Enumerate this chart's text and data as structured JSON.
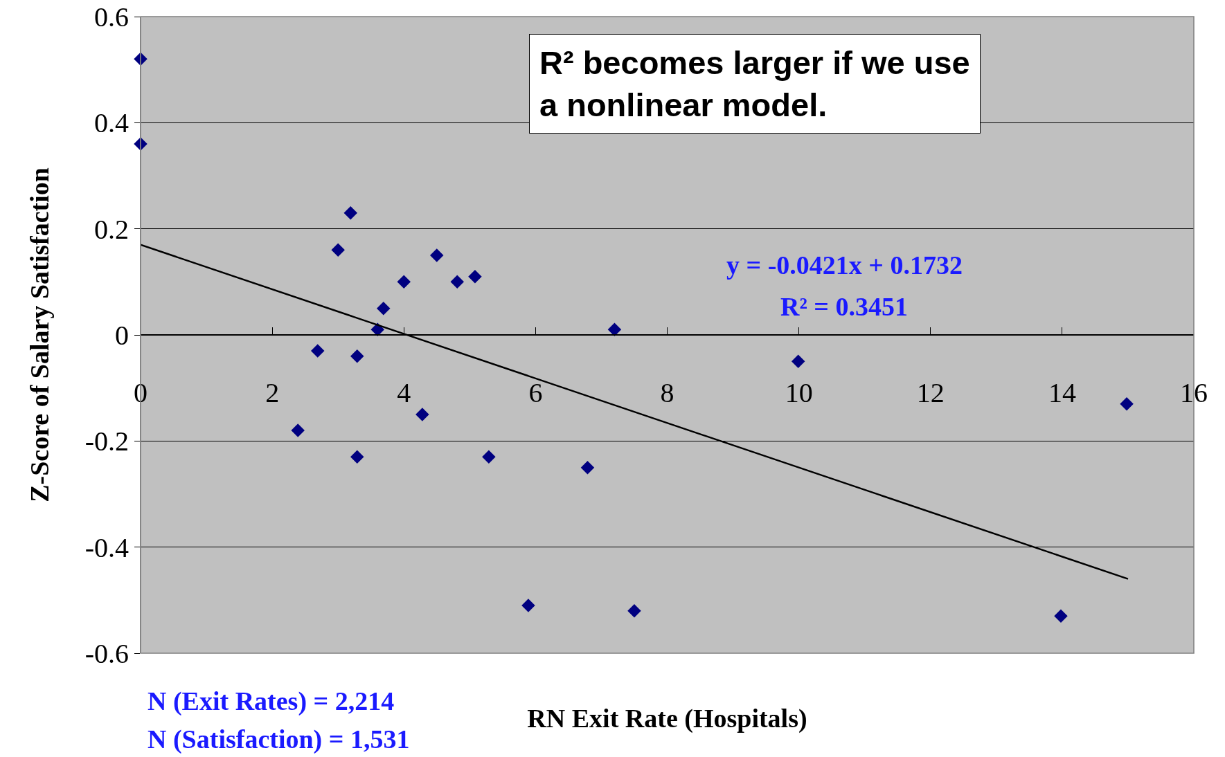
{
  "chart_data": {
    "type": "scatter",
    "xlabel": "RN Exit Rate (Hospitals)",
    "ylabel": "Z-Score of Salary Satisfaction",
    "xlim": [
      0,
      16
    ],
    "xticks": [
      0,
      2,
      4,
      6,
      8,
      10,
      12,
      14,
      16
    ],
    "ylim": [
      -0.6,
      0.6
    ],
    "yticks": [
      -0.6,
      -0.4,
      -0.2,
      0,
      0.2,
      0.4,
      0.6
    ],
    "grid": "y",
    "marker": "diamond",
    "series": [
      {
        "color": "#000080",
        "x": [
          0,
          0,
          3.19,
          3.0,
          4.5,
          4.0,
          4.81,
          5.08,
          3.69,
          3.6,
          2.69,
          3.29,
          7.2,
          9.99,
          2.39,
          4.28,
          3.29,
          5.29,
          6.79,
          5.89,
          7.5,
          13.98,
          14.98
        ],
        "values": [
          0.52,
          0.36,
          0.23,
          0.16,
          0.15,
          0.1,
          0.1,
          0.11,
          0.05,
          0.01,
          -0.03,
          -0.04,
          0.01,
          -0.05,
          -0.18,
          -0.15,
          -0.23,
          -0.23,
          -0.25,
          -0.51,
          -0.52,
          -0.53,
          -0.13
        ]
      },
      {
        "type": "line",
        "color": "#000000",
        "marker": "none",
        "x": [
          0,
          15
        ],
        "values": [
          0.17,
          -0.46
        ]
      }
    ],
    "annotations": [
      "R² becomes larger if we use a nonlinear model.",
      "y = -0.0421x + 0.1732",
      "R² = 0.3451",
      "N (Exit Rates) = 2,214",
      "N (Satisfaction) = 1,531"
    ]
  }
}
